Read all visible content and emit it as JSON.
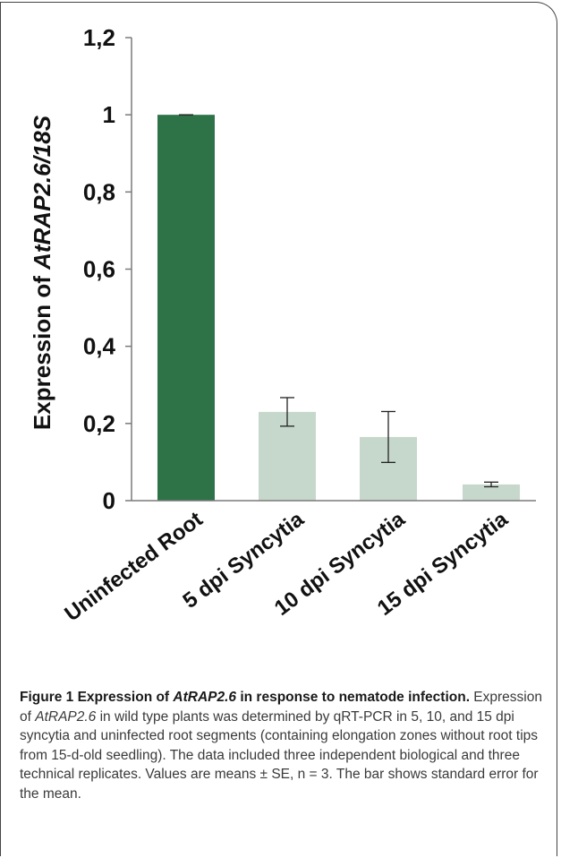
{
  "chart_data": {
    "type": "bar",
    "categories": [
      "Uninfected Root",
      "5 dpi Syncytia",
      "10 dpi Syncytia",
      "15 dpi Syncytia"
    ],
    "values": [
      1.0,
      0.23,
      0.165,
      0.042
    ],
    "errors": [
      0.0,
      0.037,
      0.066,
      0.006
    ],
    "ylim": [
      0,
      1.2
    ],
    "yticks": [
      "0",
      "0,2",
      "0,4",
      "0,6",
      "0,8",
      "1",
      "1,2"
    ],
    "ylabel_prefix": "Expression of ",
    "ylabel_gene": "AtRAP2.6/18S",
    "colors": [
      "#2e7348",
      "#c6d8cc",
      "#c6d8cc",
      "#c6d8cc"
    ]
  },
  "caption": {
    "title_prefix": "Figure 1 Expression of ",
    "title_gene": "AtRAP2.6",
    "title_suffix": " in response to nematode infection.",
    "body_prefix": " Expression of ",
    "body_gene": "AtRAP2.6",
    "body_suffix": " in wild type plants was determined by qRT-PCR in 5, 10, and 15 dpi syncytia and uninfected root segments (containing elongation zones without root tips from 15-d-old seedling). The data included three independent biological and three technical replicates. Values are means ± SE, n = 3. The bar shows standard error for the mean."
  }
}
